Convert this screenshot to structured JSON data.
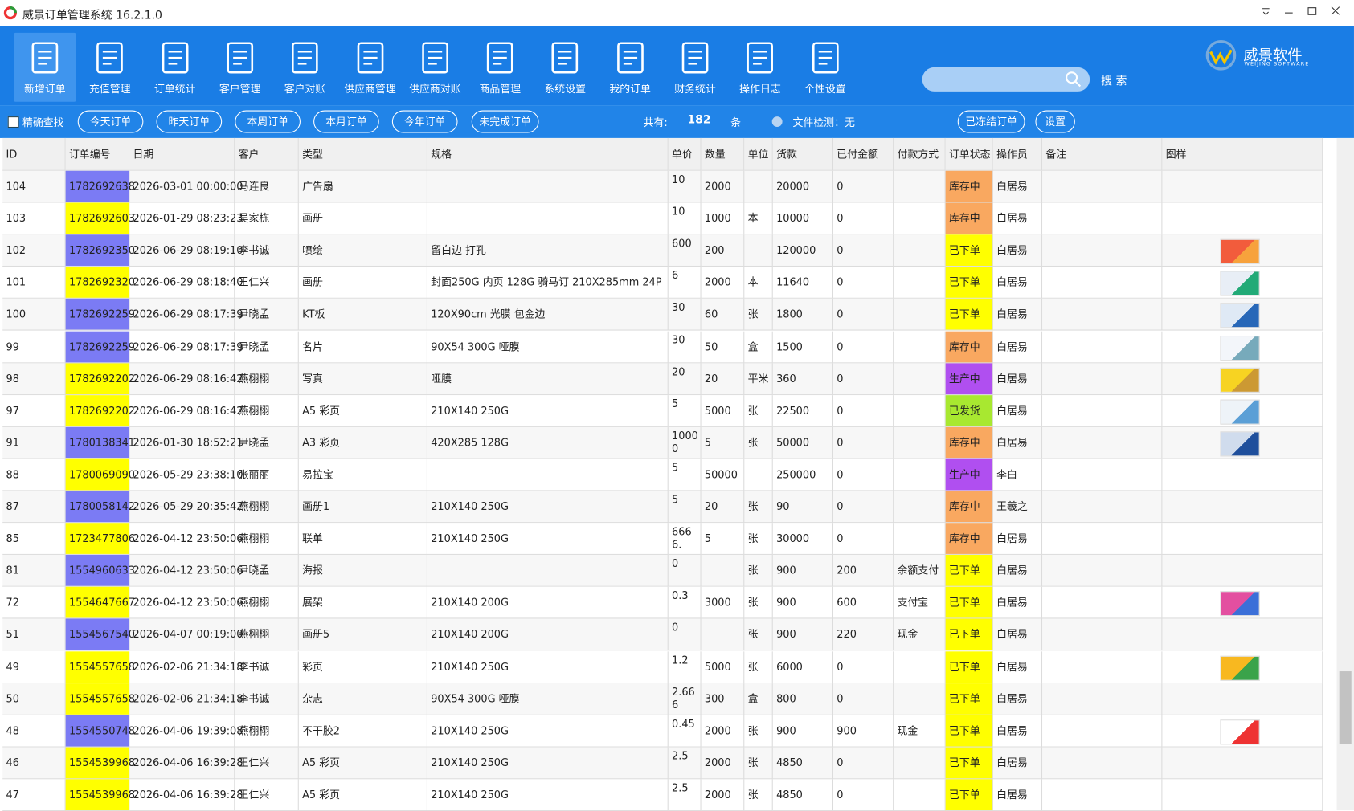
{
  "title": "威景订单管理系统 16.2.1.0",
  "toolbar": [
    "新增订单",
    "充值管理",
    "订单统计",
    "客户管理",
    "客户对账",
    "供应商管理",
    "供应商对账",
    "商品管理",
    "系统设置",
    "我的订单",
    "财务统计",
    "操作日志",
    "个性设置"
  ],
  "logo": {
    "name": "威景软件",
    "subtitle": "WEIJING SOFTWARE"
  },
  "search_button": "搜 索",
  "filters": {
    "exact_search": "精确查找",
    "buttons": [
      "今天订单",
      "昨天订单",
      "本周订单",
      "本月订单",
      "今年订单",
      "未完成订单"
    ],
    "total_label": "共有:",
    "total": 182,
    "total_unit": "条",
    "file_check": "文件检测：无",
    "right_buttons": [
      "已冻结订单",
      "设置"
    ]
  },
  "table": {
    "columns": [
      "ID",
      "订单编号",
      "日期",
      "客户",
      "类型",
      "规格",
      "单价",
      "数量",
      "单位",
      "货款",
      "已付金额",
      "付款方式",
      "订单状态",
      "操作员",
      "备注",
      "图样"
    ],
    "rows": [
      [
        "104",
        "1782692638",
        "2026-03-01 00:00:00",
        "马连良",
        "广告扇",
        "",
        "10",
        "2000",
        "",
        "20000",
        "0",
        "",
        "库存中",
        "白居易",
        ""
      ],
      [
        "103",
        "1782692603",
        "2026-01-29 08:23:23",
        "吴家栋",
        "画册",
        "",
        "10",
        "1000",
        "本",
        "10000",
        "0",
        "",
        "库存中",
        "白居易",
        ""
      ],
      [
        "102",
        "1782692350",
        "2026-06-29 08:19:10",
        "李书诚",
        "喷绘",
        "留白边 打孔",
        "600",
        "200",
        "",
        "120000",
        "0",
        "",
        "已下单",
        "白居易",
        ""
      ],
      [
        "101",
        "1782692320",
        "2026-06-29 08:18:40",
        "王仁兴",
        "画册",
        "封面250G 内页 128G 骑马订 210X285mm 24P",
        "6",
        "2000",
        "本",
        "11640",
        "0",
        "",
        "已下单",
        "白居易",
        ""
      ],
      [
        "100",
        "1782692259",
        "2026-06-29 08:17:39",
        "尹晓孟",
        "KT板",
        "120X90cm 光膜 包金边",
        "30",
        "60",
        "张",
        "1800",
        "0",
        "",
        "已下单",
        "白居易",
        ""
      ],
      [
        "99",
        "1782692259",
        "2026-06-29 08:17:39",
        "尹晓孟",
        "名片",
        "90X54 300G  哑膜",
        "30",
        "50",
        "盒",
        "1500",
        "0",
        "",
        "库存中",
        "白居易",
        ""
      ],
      [
        "98",
        "1782692202",
        "2026-06-29 08:16:42",
        "燕栩栩",
        "写真",
        "哑膜",
        "20",
        "20",
        "平米",
        "360",
        "0",
        "",
        "生产中",
        "白居易",
        ""
      ],
      [
        "97",
        "1782692202",
        "2026-06-29 08:16:42",
        "燕栩栩",
        "A5 彩页",
        "210X140 250G",
        "5",
        "5000",
        "张",
        "22500",
        "0",
        "",
        "已发货",
        "白居易",
        ""
      ],
      [
        "91",
        "1780138341",
        "2026-01-30 18:52:21",
        "尹晓孟",
        "A3 彩页",
        "420X285 128G",
        "10000",
        "5",
        "张",
        "50000",
        "0",
        "",
        "库存中",
        "白居易",
        ""
      ],
      [
        "88",
        "1780069090",
        "2026-05-29 23:38:10",
        "张丽丽",
        "易拉宝",
        "",
        "5",
        "50000",
        "",
        "250000",
        "0",
        "",
        "生产中",
        "李白",
        ""
      ],
      [
        "87",
        "1780058142",
        "2026-05-29 20:35:42",
        "燕栩栩",
        "画册1",
        "210X140 250G",
        "5",
        "20",
        "张",
        "90",
        "0",
        "",
        "库存中",
        "王羲之",
        ""
      ],
      [
        "85",
        "1723477806",
        "2026-04-12 23:50:06",
        "燕栩栩",
        "联单",
        "210X140 250G",
        "6666.",
        "5",
        "张",
        "30000",
        "0",
        "",
        "库存中",
        "白居易",
        ""
      ],
      [
        "81",
        "1554960633",
        "2026-04-12 23:50:06",
        "尹晓孟",
        "海报",
        "",
        "0",
        "",
        "张",
        "900",
        "200",
        "余额支付",
        "已下单",
        "白居易",
        ""
      ],
      [
        "72",
        "1554647667",
        "2026-04-12 23:50:06",
        "燕栩栩",
        "展架",
        "210X140 200G",
        "0.3",
        "3000",
        "张",
        "900",
        "600",
        "支付宝",
        "已下单",
        "白居易",
        ""
      ],
      [
        "51",
        "1554567540",
        "2026-04-07 00:19:00",
        "燕栩栩",
        "画册5",
        "210X140 200G",
        "0",
        "",
        "张",
        "900",
        "220",
        "现金",
        "已下单",
        "白居易",
        ""
      ],
      [
        "49",
        "1554557658",
        "2026-02-06 21:34:18",
        "李书诚",
        "彩页",
        "210X140 250G",
        "1.2",
        "5000",
        "张",
        "6000",
        "0",
        "",
        "已下单",
        "白居易",
        ""
      ],
      [
        "50",
        "1554557658",
        "2026-02-06 21:34:18",
        "李书诚",
        "杂志",
        "90X54 300G  哑膜",
        "2.666",
        "300",
        "盒",
        "800",
        "0",
        "",
        "已下单",
        "白居易",
        ""
      ],
      [
        "48",
        "1554550748",
        "2026-04-06 19:39:08",
        "燕栩栩",
        "不干胶2",
        "210X140 250G",
        "0.45",
        "2000",
        "张",
        "900",
        "900",
        "现金",
        "已下单",
        "白居易",
        ""
      ],
      [
        "46",
        "1554539968",
        "2026-04-06 16:39:28",
        "王仁兴",
        "A5 彩页",
        "210X140 250G",
        "2.5",
        "2000",
        "张",
        "4850",
        "0",
        "",
        "已下单",
        "白居易",
        ""
      ],
      [
        "47",
        "1554539968",
        "2026-04-06 16:39:28",
        "王仁兴",
        "A5 彩页",
        "210X140 250G",
        "2.5",
        "2000",
        "张",
        "4850",
        "0",
        "",
        "已下单",
        "白居易",
        ""
      ]
    ],
    "order_colors": [
      "#7b7bf4",
      "#ffff00",
      "#7b7bf4",
      "#ffff00",
      "#7b7bf4",
      "#7b7bf4",
      "#ffff00",
      "#ffff00",
      "#7b7bf4",
      "#ffff00",
      "#7b7bf4",
      "#ffff00",
      "#7b7bf4",
      "#ffff00",
      "#7b7bf4",
      "#ffff00",
      "#ffff00",
      "#7b7bf4",
      "#ffff00",
      "#ffff00"
    ],
    "status_colors": [
      "#f9a860",
      "#f9a860",
      "#ffff00",
      "#ffff00",
      "#ffff00",
      "#f9a860",
      "#b04ff0",
      "#a8e830",
      "#f9a860",
      "#b04ff0",
      "#f9a860",
      "#f9a860",
      "#ffff00",
      "#ffff00",
      "#ffff00",
      "#ffff00",
      "#ffff00",
      "#ffff00",
      "#ffff00",
      "#ffff00"
    ]
  }
}
